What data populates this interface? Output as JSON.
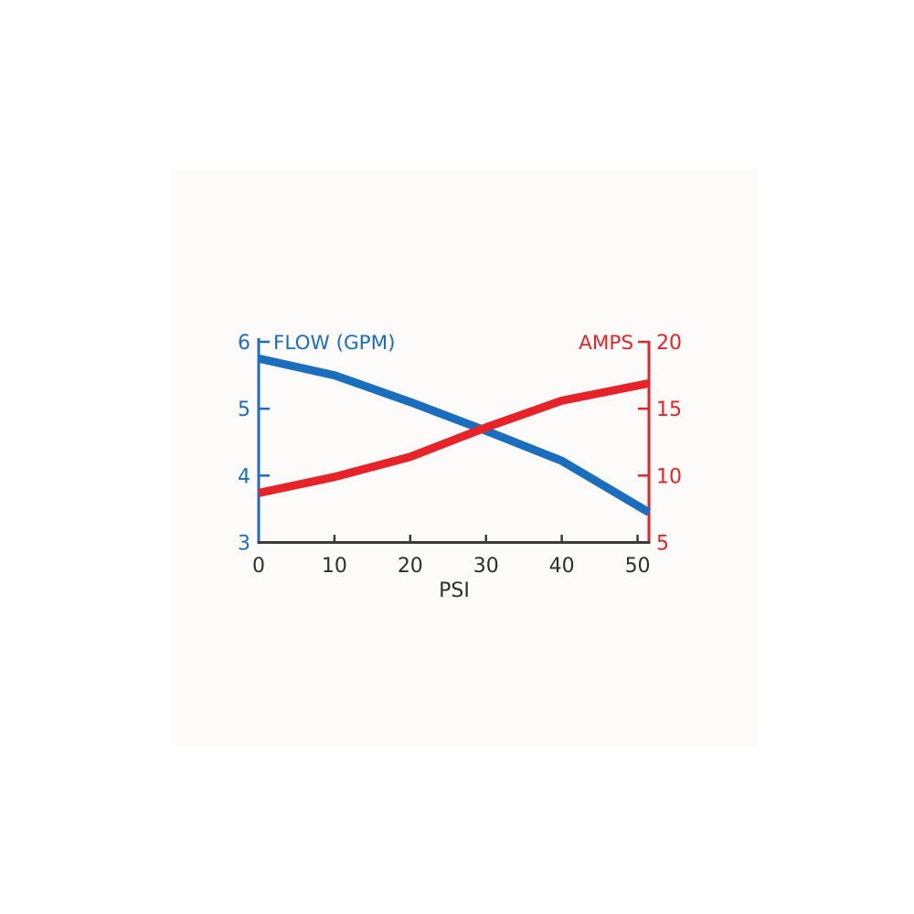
{
  "page": {
    "background": "#ffffff",
    "scan_area_color": "#fcfbfa"
  },
  "chart_data": {
    "type": "line",
    "x_axis": {
      "label": "PSI",
      "tick_values": [
        0,
        10,
        20,
        30,
        40,
        50
      ],
      "tick_labels": [
        "0",
        "10",
        "20",
        "30",
        "40",
        "50"
      ],
      "range": [
        0,
        51.5
      ],
      "axis_color": "#3b3b3b",
      "text_color": "#2e2e2e"
    },
    "left_axis": {
      "title": "FLOW (GPM)",
      "tick_values": [
        3,
        4,
        5,
        6
      ],
      "tick_labels": [
        "3",
        "4",
        "5",
        "6"
      ],
      "range": [
        3,
        6
      ],
      "color": "#1b6dbe"
    },
    "right_axis": {
      "title": "AMPS",
      "tick_values": [
        5,
        10,
        15,
        20
      ],
      "tick_labels": [
        "5",
        "10",
        "15",
        "20"
      ],
      "range": [
        5,
        20
      ],
      "color": "#e62328"
    },
    "grid": false,
    "legend": "axis-titles-as-legend",
    "series": [
      {
        "name": "FLOW (GPM)",
        "axis": "left",
        "color": "#1b6dbe",
        "x": [
          0,
          10,
          20,
          30,
          40,
          51.5
        ],
        "values": [
          5.75,
          5.5,
          5.1,
          4.67,
          4.22,
          3.45
        ]
      },
      {
        "name": "AMPS",
        "axis": "right",
        "color": "#e62328",
        "x": [
          0,
          10,
          20,
          30,
          40,
          51.5
        ],
        "values": [
          8.7,
          9.9,
          11.4,
          13.6,
          15.6,
          16.9
        ]
      }
    ]
  }
}
